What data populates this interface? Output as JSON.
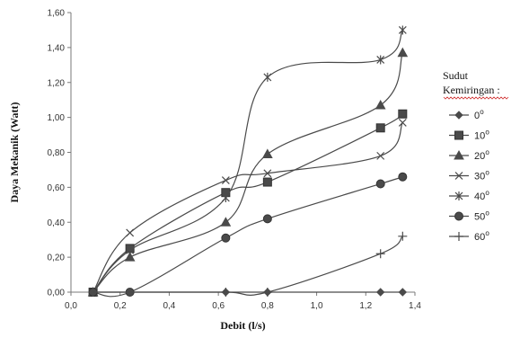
{
  "chart_data": {
    "type": "line",
    "title": "",
    "xlabel": "Debit (l/s)",
    "ylabel": "Daya Mekanik (Watt)",
    "xlim": [
      0.0,
      1.4
    ],
    "ylim": [
      0.0,
      1.6
    ],
    "x_ticks": [
      "0,0",
      "0,2",
      "0,4",
      "0,6",
      "0,8",
      "1,0",
      "1,2",
      "1,4"
    ],
    "y_ticks": [
      "0,00",
      "0,20",
      "0,40",
      "0,60",
      "0,80",
      "1,00",
      "1,20",
      "1,40",
      "1,60"
    ],
    "grid": false,
    "legend_title": [
      "Sudut",
      "Kemiringan :"
    ],
    "legend_position": "right",
    "series": [
      {
        "name": "0",
        "marker": "diamond",
        "color": "#4a4a4a",
        "x": [
          0.09,
          0.24,
          0.63,
          0.8,
          1.26,
          1.35
        ],
        "y": [
          0.0,
          0.0,
          0.0,
          0.0,
          0.0,
          0.0
        ]
      },
      {
        "name": "10",
        "marker": "square",
        "color": "#4a4a4a",
        "x": [
          0.09,
          0.24,
          0.63,
          0.8,
          1.26,
          1.35
        ],
        "y": [
          0.0,
          0.25,
          0.57,
          0.63,
          0.94,
          1.02
        ]
      },
      {
        "name": "20",
        "marker": "triangle",
        "color": "#4a4a4a",
        "x": [
          0.09,
          0.24,
          0.63,
          0.8,
          1.26,
          1.35
        ],
        "y": [
          0.0,
          0.2,
          0.4,
          0.79,
          1.07,
          1.37
        ]
      },
      {
        "name": "30",
        "marker": "x",
        "color": "#4a4a4a",
        "x": [
          0.09,
          0.24,
          0.63,
          0.8,
          1.26,
          1.35
        ],
        "y": [
          0.0,
          0.34,
          0.64,
          0.68,
          0.78,
          0.97
        ]
      },
      {
        "name": "40",
        "marker": "star",
        "color": "#4a4a4a",
        "x": [
          0.09,
          0.24,
          0.63,
          0.8,
          1.26,
          1.35
        ],
        "y": [
          0.0,
          0.24,
          0.54,
          1.23,
          1.33,
          1.5
        ]
      },
      {
        "name": "50",
        "marker": "circle",
        "color": "#4a4a4a",
        "x": [
          0.09,
          0.24,
          0.63,
          0.8,
          1.26,
          1.35
        ],
        "y": [
          0.0,
          0.0,
          0.31,
          0.42,
          0.62,
          0.66
        ]
      },
      {
        "name": "60",
        "marker": "plus",
        "color": "#4a4a4a",
        "x": [
          0.09,
          0.24,
          0.63,
          0.8,
          1.26,
          1.35
        ],
        "y": [
          0.0,
          0.0,
          0.0,
          0.0,
          0.22,
          0.32
        ]
      }
    ],
    "degree_symbol": "o"
  }
}
